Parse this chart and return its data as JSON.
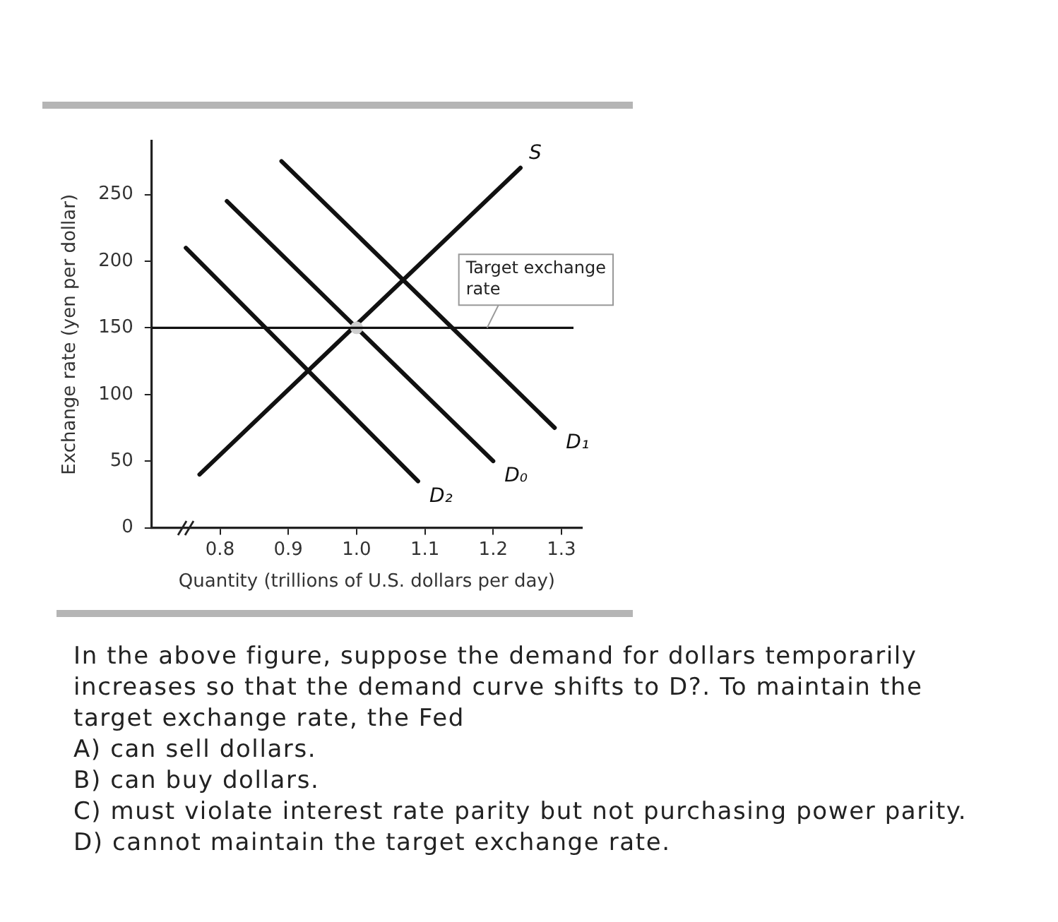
{
  "chart_data": {
    "type": "line",
    "xlabel": "Quantity (trillions of U.S. dollars per day)",
    "ylabel": "Exchange rate (yen per dollar)",
    "xlim": [
      0.7,
      1.33
    ],
    "xticks": [
      0.8,
      0.9,
      {
        "value": 1,
        "label": "1.0"
      },
      1.1,
      1.2,
      1.3
    ],
    "ylim": [
      0,
      290
    ],
    "yticks": [
      0,
      50,
      100,
      150,
      200,
      250
    ],
    "grid": false,
    "legend": false,
    "marker": "none",
    "line_style": "solid",
    "series": [
      {
        "name": "S",
        "color": "#111111",
        "x": [
          0.77,
          1.24
        ],
        "values": [
          40,
          270
        ]
      },
      {
        "name": "D₁",
        "color": "#111111",
        "x": [
          0.89,
          1.29
        ],
        "values": [
          275,
          75
        ]
      },
      {
        "name": "D₀",
        "color": "#111111",
        "x": [
          0.81,
          1.2
        ],
        "values": [
          245,
          50
        ]
      },
      {
        "name": "D₂",
        "color": "#111111",
        "x": [
          0.75,
          1.09
        ],
        "values": [
          210,
          35
        ]
      },
      {
        "type": "scatter",
        "marker": "circle",
        "color": "#cfcfcf",
        "x": [
          1
        ],
        "values": [
          150
        ]
      }
    ],
    "ref_lines": [
      {
        "axis": "y",
        "value": 150,
        "label": "Target exchange rate",
        "color": "#111111"
      }
    ],
    "annotations": [
      "In the above figure, suppose the demand for dollars temporarily increases so that the demand curve shifts to D?. To maintain the target exchange rate, the Fed",
      "A) can sell dollars.",
      "B) can buy dollars.",
      "C) must violate interest rate parity but not purchasing power parity.",
      "D) cannot maintain the target exchange rate."
    ]
  }
}
